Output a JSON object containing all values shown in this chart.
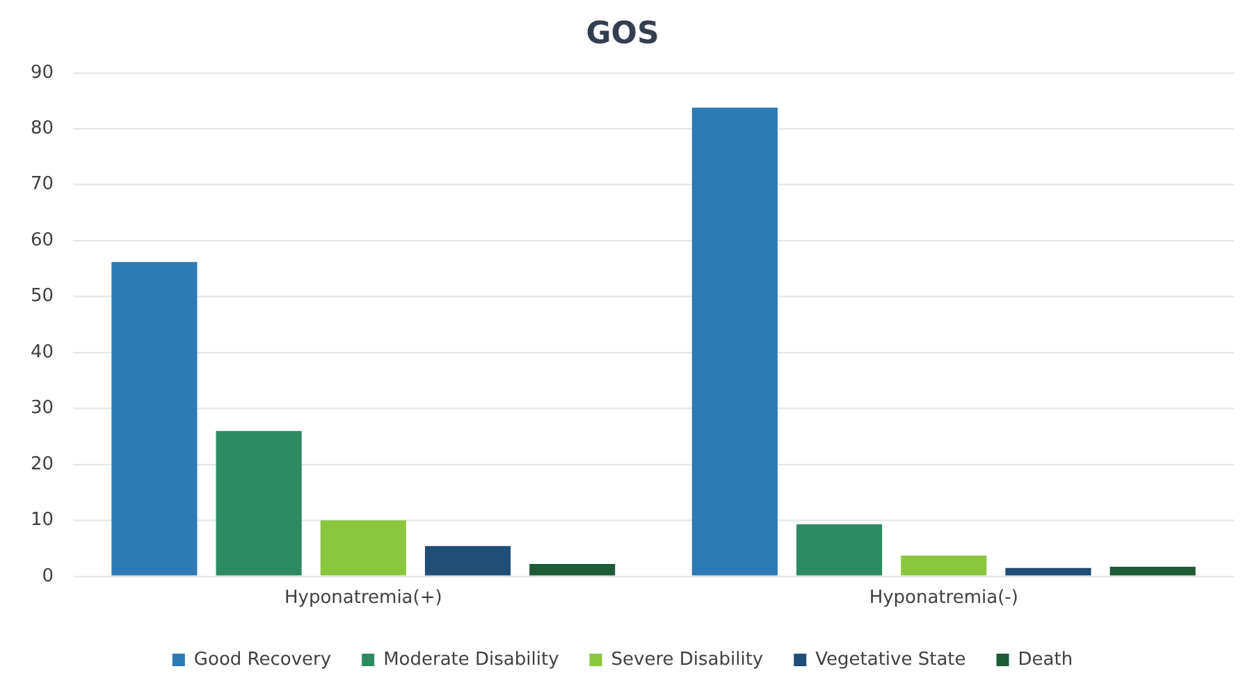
{
  "chart_data": {
    "type": "bar",
    "title": "GOS",
    "categories": [
      "Hyponatremia(+)",
      "Hyponatremia(-)"
    ],
    "series": [
      {
        "name": "Good Recovery",
        "color": "#2e7ab5",
        "values": [
          56.2,
          83.8
        ]
      },
      {
        "name": "Moderate Disability",
        "color": "#2e8a62",
        "values": [
          26,
          9.3
        ]
      },
      {
        "name": "Severe Disability",
        "color": "#8cc63f",
        "values": [
          10,
          3.7
        ]
      },
      {
        "name": "Vegetative State",
        "color": "#1f4e78",
        "values": [
          5.4,
          1.5
        ]
      },
      {
        "name": "Death",
        "color": "#1e5c38",
        "values": [
          2.2,
          1.7
        ]
      }
    ],
    "ylim": [
      0,
      90
    ],
    "yticks": [
      0,
      10,
      20,
      30,
      40,
      50,
      60,
      70,
      80,
      90
    ],
    "grid": "y",
    "legend": "bottom"
  }
}
